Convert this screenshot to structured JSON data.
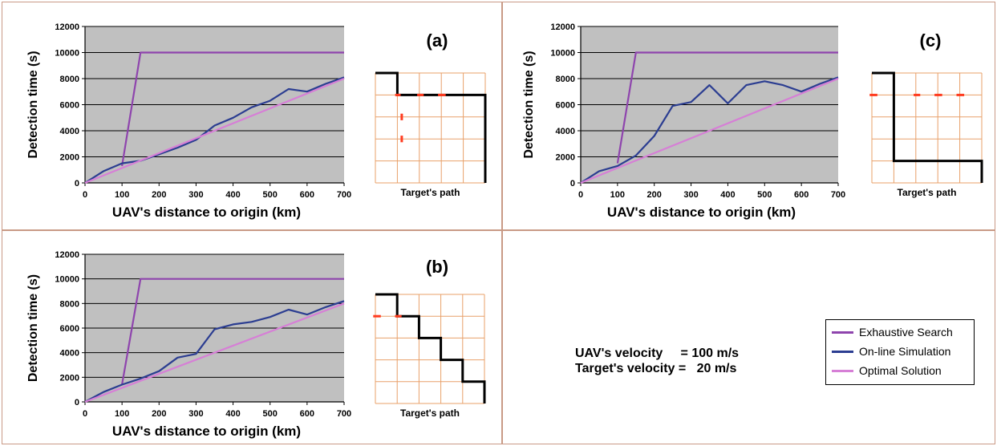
{
  "panels": {
    "a": {
      "label": "(a)",
      "grid_caption": "Target's path",
      "chart_data": {
        "type": "line",
        "xlabel": "UAV's distance to origin (km)",
        "ylabel": "Detection time (s)",
        "xlim": [
          0,
          700
        ],
        "ylim": [
          0,
          12000
        ],
        "xticks": [
          0,
          100,
          200,
          300,
          400,
          500,
          600,
          700
        ],
        "yticks": [
          0,
          2000,
          4000,
          6000,
          8000,
          10000,
          12000
        ],
        "grid": "horizontal",
        "series": [
          {
            "name": "Exhaustive Search",
            "color": "#8e44ad",
            "x": [
              100,
              150,
              700
            ],
            "y": [
              1300,
              10000,
              10000
            ]
          },
          {
            "name": "On-line Simulation",
            "color": "#2b3d91",
            "x": [
              0,
              50,
              100,
              150,
              200,
              250,
              300,
              350,
              400,
              450,
              500,
              550,
              600,
              650,
              700
            ],
            "y": [
              0,
              900,
              1500,
              1700,
              2200,
              2700,
              3300,
              4400,
              5000,
              5800,
              6300,
              7200,
              7000,
              7600,
              8100
            ]
          },
          {
            "name": "Optimal Solution",
            "color": "#d67fd6",
            "x": [
              0,
              700
            ],
            "y": [
              0,
              8000
            ]
          }
        ]
      }
    },
    "c": {
      "label": "(c)",
      "grid_caption": "Target's path",
      "chart_data": {
        "type": "line",
        "xlabel": "UAV's distance to origin (km)",
        "ylabel": "Detection time (s)",
        "xlim": [
          0,
          700
        ],
        "ylim": [
          0,
          12000
        ],
        "xticks": [
          0,
          100,
          200,
          300,
          400,
          500,
          600,
          700
        ],
        "yticks": [
          0,
          2000,
          4000,
          6000,
          8000,
          10000,
          12000
        ],
        "grid": "horizontal",
        "series": [
          {
            "name": "Exhaustive Search",
            "color": "#8e44ad",
            "x": [
              100,
              150,
              700
            ],
            "y": [
              1500,
              10000,
              10000
            ]
          },
          {
            "name": "On-line Simulation",
            "color": "#2b3d91",
            "x": [
              0,
              50,
              100,
              150,
              200,
              250,
              300,
              350,
              400,
              450,
              500,
              550,
              600,
              650,
              700
            ],
            "y": [
              0,
              900,
              1300,
              2100,
              3600,
              5900,
              6200,
              7500,
              6100,
              7500,
              7800,
              7500,
              7000,
              7600,
              8100
            ]
          },
          {
            "name": "Optimal Solution",
            "color": "#d67fd6",
            "x": [
              0,
              700
            ],
            "y": [
              0,
              8000
            ]
          }
        ]
      }
    },
    "b": {
      "label": "(b)",
      "grid_caption": "Target's path",
      "chart_data": {
        "type": "line",
        "xlabel": "UAV's distance to origin (km)",
        "ylabel": "Detection time (s)",
        "xlim": [
          0,
          700
        ],
        "ylim": [
          0,
          12000
        ],
        "xticks": [
          0,
          100,
          200,
          300,
          400,
          500,
          600,
          700
        ],
        "yticks": [
          0,
          2000,
          4000,
          6000,
          8000,
          10000,
          12000
        ],
        "grid": "horizontal",
        "series": [
          {
            "name": "Exhaustive Search",
            "color": "#8e44ad",
            "x": [
              100,
              150,
              700
            ],
            "y": [
              1400,
              10000,
              10000
            ]
          },
          {
            "name": "On-line Simulation",
            "color": "#2b3d91",
            "x": [
              0,
              50,
              100,
              150,
              200,
              250,
              300,
              350,
              400,
              450,
              500,
              550,
              600,
              650,
              700
            ],
            "y": [
              0,
              800,
              1400,
              1900,
              2500,
              3600,
              3900,
              5900,
              6300,
              6500,
              6900,
              7500,
              7100,
              7700,
              8200
            ]
          },
          {
            "name": "Optimal Solution",
            "color": "#d67fd6",
            "x": [
              0,
              700
            ],
            "y": [
              0,
              8000
            ]
          }
        ]
      }
    }
  },
  "legend": {
    "items": [
      {
        "label": "Exhaustive Search",
        "color": "#8e44ad"
      },
      {
        "label": "On-line Simulation",
        "color": "#2b3d91"
      },
      {
        "label": "Optimal Solution",
        "color": "#d67fd6"
      }
    ]
  },
  "velocities": {
    "uav": "UAV's velocity     = 100 m/s",
    "target": "Target's velocity =   20 m/s"
  }
}
